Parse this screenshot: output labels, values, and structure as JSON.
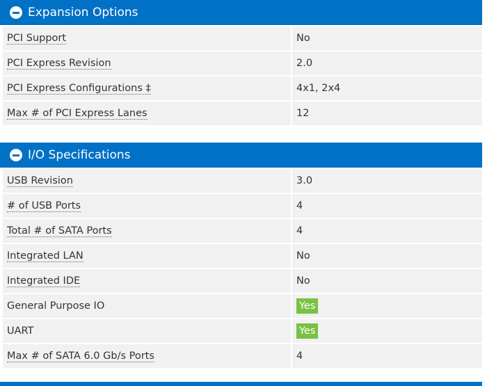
{
  "sections": [
    {
      "title": "Expansion Options",
      "rows": [
        {
          "label": "PCI Support",
          "value": "No"
        },
        {
          "label": "PCI Express Revision",
          "value": "2.0"
        },
        {
          "label": "PCI Express Configurations ‡",
          "value": "4x1, 2x4"
        },
        {
          "label": "Max # of PCI Express Lanes",
          "value": "12"
        }
      ]
    },
    {
      "title": "I/O Specifications",
      "rows": [
        {
          "label": "USB Revision",
          "value": "3.0"
        },
        {
          "label": "# of USB Ports",
          "value": "4"
        },
        {
          "label": "Total # of SATA Ports",
          "value": "4"
        },
        {
          "label": "Integrated LAN",
          "value": "No"
        },
        {
          "label": "Integrated IDE",
          "value": "No"
        },
        {
          "label": "General Purpose IO",
          "value": "Yes",
          "badge": true,
          "underlined": false
        },
        {
          "label": "UART",
          "value": "Yes",
          "badge": true,
          "underlined": false
        },
        {
          "label": "Max # of SATA 6.0 Gb/s Ports",
          "value": "4"
        }
      ]
    }
  ]
}
